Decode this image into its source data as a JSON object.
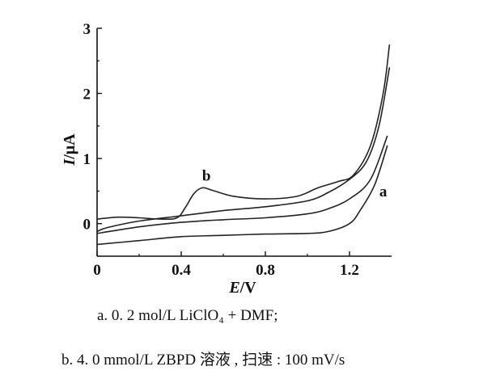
{
  "chart_data": {
    "type": "line",
    "xlabel_italic": "E",
    "xlabel_unit": "/V",
    "ylabel_italic": "I",
    "ylabel_unit": "/μA",
    "xlim": [
      0,
      1.4
    ],
    "ylim": [
      -0.5,
      3
    ],
    "x_ticks": [
      0,
      0.4,
      0.8,
      1.2
    ],
    "x_tick_labels": [
      "0",
      "0.4",
      "0.8",
      "1.2"
    ],
    "y_ticks": [
      0,
      1,
      2,
      3
    ],
    "y_tick_labels": [
      "0",
      "1",
      "2",
      "3"
    ],
    "grid": false,
    "series": [
      {
        "name": "a",
        "color": "#222222",
        "forward": [
          [
            0,
            -0.15
          ],
          [
            0.2,
            -0.05
          ],
          [
            0.4,
            0.02
          ],
          [
            0.6,
            0.06
          ],
          [
            0.8,
            0.09
          ],
          [
            1.0,
            0.15
          ],
          [
            1.1,
            0.23
          ],
          [
            1.2,
            0.38
          ],
          [
            1.3,
            0.68
          ],
          [
            1.38,
            1.35
          ]
        ],
        "reverse": [
          [
            1.38,
            1.2
          ],
          [
            1.32,
            0.6
          ],
          [
            1.25,
            0.2
          ],
          [
            1.2,
            0.0
          ],
          [
            1.1,
            -0.12
          ],
          [
            1.0,
            -0.15
          ],
          [
            0.8,
            -0.16
          ],
          [
            0.6,
            -0.18
          ],
          [
            0.4,
            -0.2
          ],
          [
            0.2,
            -0.26
          ],
          [
            0,
            -0.32
          ]
        ]
      },
      {
        "name": "b",
        "color": "#222222",
        "forward": [
          [
            0,
            0.07
          ],
          [
            0.1,
            0.1
          ],
          [
            0.2,
            0.09
          ],
          [
            0.3,
            0.07
          ],
          [
            0.38,
            0.09
          ],
          [
            0.42,
            0.25
          ],
          [
            0.46,
            0.46
          ],
          [
            0.5,
            0.55
          ],
          [
            0.55,
            0.51
          ],
          [
            0.65,
            0.42
          ],
          [
            0.8,
            0.38
          ],
          [
            0.95,
            0.42
          ],
          [
            1.05,
            0.55
          ],
          [
            1.15,
            0.65
          ],
          [
            1.22,
            0.75
          ],
          [
            1.3,
            1.2
          ],
          [
            1.36,
            2.0
          ],
          [
            1.39,
            2.75
          ]
        ],
        "reverse": [
          [
            1.39,
            2.4
          ],
          [
            1.34,
            1.5
          ],
          [
            1.28,
            0.95
          ],
          [
            1.2,
            0.68
          ],
          [
            1.1,
            0.48
          ],
          [
            1.0,
            0.35
          ],
          [
            0.8,
            0.26
          ],
          [
            0.6,
            0.2
          ],
          [
            0.4,
            0.12
          ],
          [
            0.2,
            0.04
          ],
          [
            0.05,
            -0.06
          ],
          [
            0,
            -0.12
          ]
        ]
      }
    ],
    "annotations": [
      {
        "text": "b",
        "x": 0.52,
        "y": 0.66
      },
      {
        "text": "a",
        "x": 1.36,
        "y": 0.42
      }
    ]
  },
  "caption": {
    "line_a": "a. 0. 2  mol/L  LiClO₄  + DMF;",
    "line_b": "b. 4. 0  mmol/L  ZBPD 溶液 , 扫速 : 100  mV/s"
  }
}
